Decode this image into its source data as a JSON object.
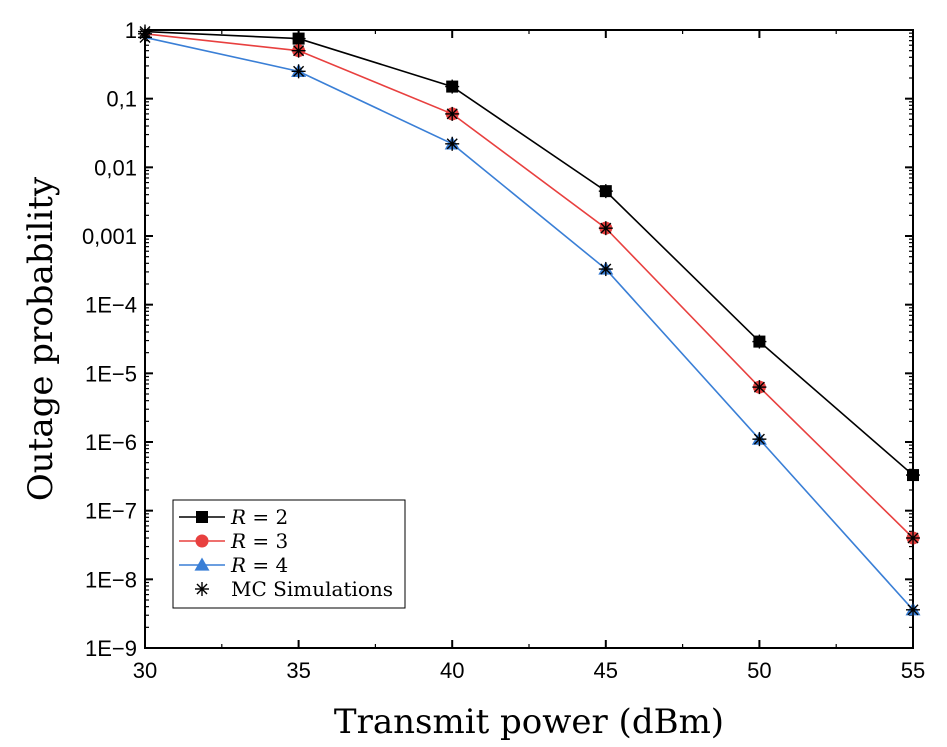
{
  "chart_data": {
    "type": "line",
    "title": "",
    "xlabel": "Transmit power (dBm)",
    "ylabel": "Outage probability",
    "xlim": [
      30,
      55
    ],
    "ylim": [
      1e-09,
      1
    ],
    "yscale": "log",
    "grid": false,
    "x": [
      30,
      35,
      40,
      45,
      50,
      55
    ],
    "x_tick_labels": [
      "30",
      "35",
      "40",
      "45",
      "50",
      "55"
    ],
    "y_tick_labels": [
      "1",
      "0,1",
      "0,01",
      "0,001",
      "1E−4",
      "1E−5",
      "1E−6",
      "1E−7",
      "1E−8",
      "1E−9"
    ],
    "series": [
      {
        "name": "R = 2",
        "legend_var": "R",
        "legend_rest": " = 2",
        "color": "#000000",
        "marker": "square",
        "values": [
          0.95,
          0.75,
          0.15,
          0.0045,
          2.9e-05,
          3.3e-07
        ]
      },
      {
        "name": "R = 3",
        "legend_var": "R",
        "legend_rest": " = 3",
        "color": "#e8403f",
        "marker": "circle",
        "values": [
          0.88,
          0.5,
          0.06,
          0.0013,
          6.3e-06,
          4e-08
        ]
      },
      {
        "name": "R = 4",
        "legend_var": "R",
        "legend_rest": " = 4",
        "color": "#3a7fd6",
        "marker": "triangle",
        "values": [
          0.78,
          0.25,
          0.022,
          0.00033,
          1.1e-06,
          3.6e-09
        ]
      }
    ],
    "simulation_marker": {
      "name": "MC Simulations",
      "marker": "asterisk",
      "color": "#000000"
    },
    "legend_position": "bottom-left"
  }
}
